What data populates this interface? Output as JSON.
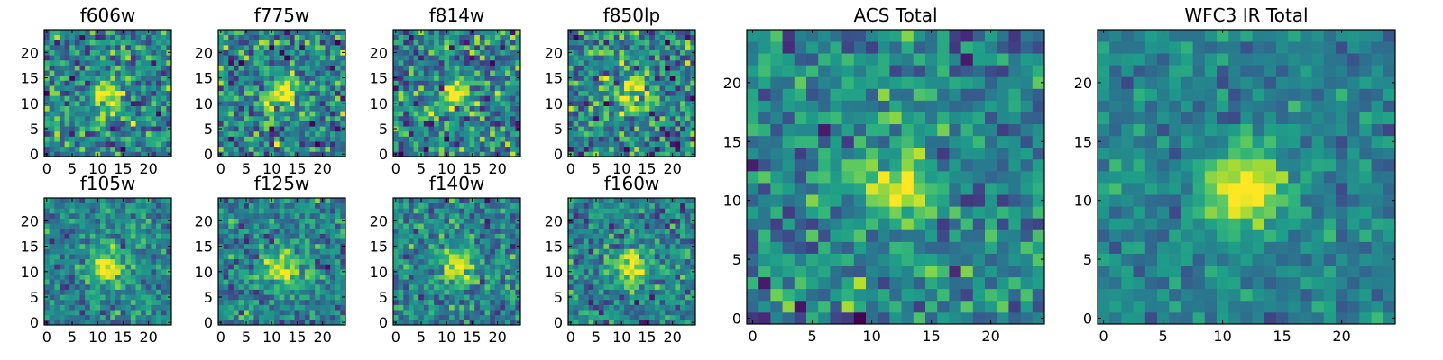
{
  "chart_data": [
    {
      "type": "heatmap",
      "title": "f606w",
      "xticks": [
        0,
        5,
        10,
        15,
        20
      ],
      "yticks": [
        0,
        5,
        10,
        15,
        20
      ],
      "grid_size": 25,
      "colormap": "viridis",
      "peak": [
        12,
        12
      ],
      "peak_sigma": 2.2,
      "peak_amp": 0.55,
      "noise": 0.32,
      "seed": 11
    },
    {
      "type": "heatmap",
      "title": "f775w",
      "xticks": [
        0,
        5,
        10,
        15,
        20
      ],
      "yticks": [
        0,
        5,
        10,
        15,
        20
      ],
      "grid_size": 25,
      "colormap": "viridis",
      "peak": [
        12,
        12
      ],
      "peak_sigma": 2.3,
      "peak_amp": 0.5,
      "noise": 0.33,
      "seed": 23
    },
    {
      "type": "heatmap",
      "title": "f814w",
      "xticks": [
        0,
        5,
        10,
        15,
        20
      ],
      "yticks": [
        0,
        5,
        10,
        15,
        20
      ],
      "grid_size": 25,
      "colormap": "viridis",
      "peak": [
        12,
        12
      ],
      "peak_sigma": 2.0,
      "peak_amp": 0.55,
      "noise": 0.34,
      "seed": 37
    },
    {
      "type": "heatmap",
      "title": "f850lp",
      "xticks": [
        0,
        5,
        10,
        15,
        20
      ],
      "yticks": [
        0,
        5,
        10,
        15,
        20
      ],
      "grid_size": 25,
      "colormap": "viridis",
      "peak": [
        12,
        12
      ],
      "peak_sigma": 2.2,
      "peak_amp": 0.5,
      "noise": 0.34,
      "seed": 41
    },
    {
      "type": "heatmap",
      "title": "f105w",
      "xticks": [
        0,
        5,
        10,
        15,
        20
      ],
      "yticks": [
        0,
        5,
        10,
        15,
        20
      ],
      "grid_size": 25,
      "colormap": "viridis",
      "peak": [
        12,
        11
      ],
      "peak_sigma": 2.3,
      "peak_amp": 0.6,
      "noise": 0.22,
      "seed": 53
    },
    {
      "type": "heatmap",
      "title": "f125w",
      "xticks": [
        0,
        5,
        10,
        15,
        20
      ],
      "yticks": [
        0,
        5,
        10,
        15,
        20
      ],
      "grid_size": 25,
      "colormap": "viridis",
      "peak": [
        12,
        11
      ],
      "peak_sigma": 2.6,
      "peak_amp": 0.5,
      "noise": 0.24,
      "seed": 67
    },
    {
      "type": "heatmap",
      "title": "f140w",
      "xticks": [
        0,
        5,
        10,
        15,
        20
      ],
      "yticks": [
        0,
        5,
        10,
        15,
        20
      ],
      "grid_size": 25,
      "colormap": "viridis",
      "peak": [
        12,
        11
      ],
      "peak_sigma": 2.2,
      "peak_amp": 0.55,
      "noise": 0.25,
      "seed": 79
    },
    {
      "type": "heatmap",
      "title": "f160w",
      "xticks": [
        0,
        5,
        10,
        15,
        20
      ],
      "yticks": [
        0,
        5,
        10,
        15,
        20
      ],
      "grid_size": 25,
      "colormap": "viridis",
      "peak": [
        12,
        11
      ],
      "peak_sigma": 2.3,
      "peak_amp": 0.55,
      "noise": 0.25,
      "seed": 83
    },
    {
      "type": "heatmap",
      "title": "ACS Total",
      "xticks": [
        0,
        5,
        10,
        15,
        20
      ],
      "yticks": [
        0,
        5,
        10,
        15,
        20
      ],
      "grid_size": 25,
      "colormap": "viridis",
      "peak": [
        12,
        11
      ],
      "peak_sigma": 1.9,
      "peak_amp": 0.6,
      "noise": 0.26,
      "seed": 97
    },
    {
      "type": "heatmap",
      "title": "WFC3 IR Total",
      "xticks": [
        0,
        5,
        10,
        15,
        20
      ],
      "yticks": [
        0,
        5,
        10,
        15,
        20
      ],
      "grid_size": 25,
      "colormap": "viridis",
      "peak": [
        12,
        11
      ],
      "peak_sigma": 2.3,
      "peak_amp": 0.65,
      "noise": 0.16,
      "seed": 101
    }
  ]
}
